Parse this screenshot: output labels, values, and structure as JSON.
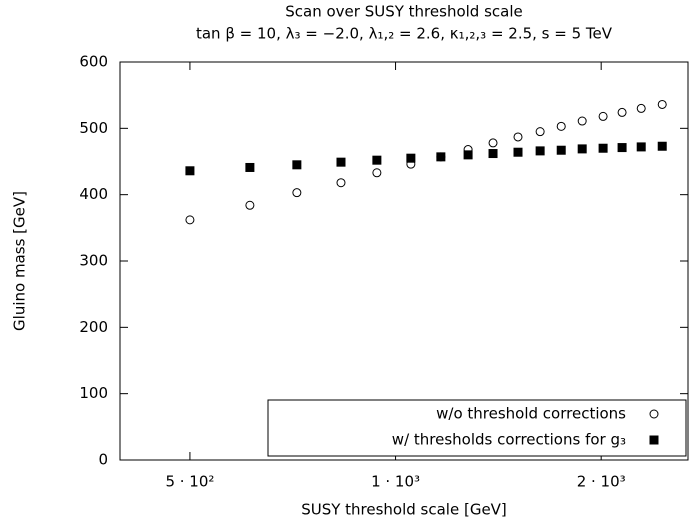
{
  "chart_data": {
    "type": "scatter",
    "title": "Scan over SUSY threshold scale",
    "subtitle": "tan β = 10, λ₃ = −2.0, λ₁,₂ = 2.6, κ₁,₂,₃ = 2.5, s = 5 TeV",
    "x_label": "SUSY threshold scale [GeV]",
    "y_label": "Gluino mass [GeV]",
    "xscale": "log",
    "xlim": [
      395,
      2680
    ],
    "ylim": [
      0,
      600
    ],
    "xticks": [
      {
        "value": 500,
        "label": "5 · 10²"
      },
      {
        "value": 1000,
        "label": "1 · 10³"
      },
      {
        "value": 2000,
        "label": "2 · 10³"
      }
    ],
    "yticks": [
      0,
      100,
      200,
      300,
      400,
      500,
      600
    ],
    "legend": "lower right",
    "series": [
      {
        "name": "w/o threshold corrections",
        "marker": "open-circle",
        "color": "#000000",
        "x": [
          500,
          612,
          717,
          832,
          939,
          1053,
          1165,
          1277,
          1389,
          1511,
          1628,
          1748,
          1876,
          2013,
          2146,
          2289,
          2457
        ],
        "values": [
          362,
          384,
          403,
          418,
          433,
          446,
          457,
          468,
          478,
          487,
          495,
          503,
          511,
          518,
          524,
          530,
          536
        ]
      },
      {
        "name": "w/ thresholds corrections for g₃",
        "marker": "filled-square",
        "color": "#000000",
        "x": [
          500,
          612,
          717,
          832,
          939,
          1053,
          1165,
          1277,
          1389,
          1511,
          1628,
          1748,
          1876,
          2013,
          2146,
          2289,
          2457
        ],
        "values": [
          436,
          441,
          445,
          449,
          452,
          455,
          457,
          460,
          462,
          464,
          466,
          467,
          469,
          470,
          471,
          472,
          473
        ]
      }
    ]
  }
}
